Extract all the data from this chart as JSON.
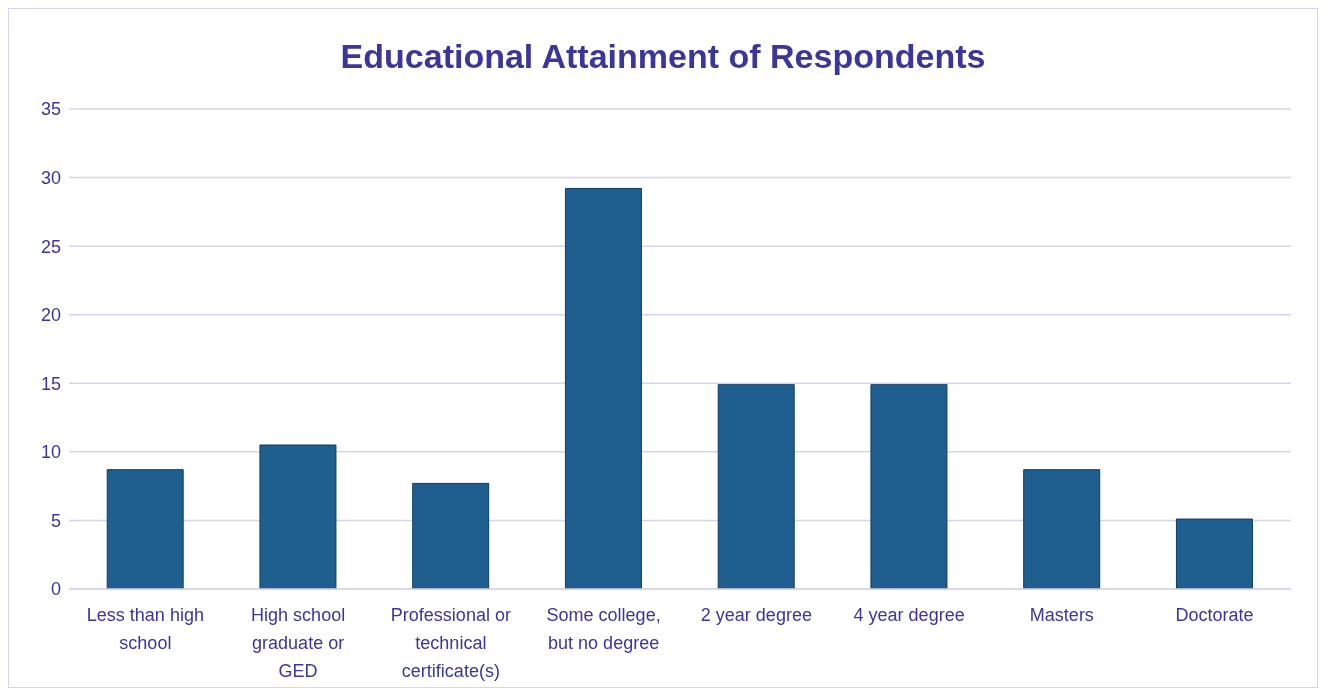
{
  "chart_data": {
    "type": "bar",
    "title": "Educational Attainment of Respondents",
    "categories": [
      "Less than high school",
      "High school graduate or GED",
      "Professional or technical certificate(s)",
      "Some college, but no degree",
      "2 year degree",
      "4 year degree",
      "Masters",
      "Doctorate"
    ],
    "values": [
      8.7,
      10.5,
      7.7,
      29.2,
      14.9,
      14.9,
      8.7,
      5.1
    ],
    "color": "#1f5f8f",
    "ylim": [
      0,
      35
    ],
    "yticks": [
      0,
      5,
      10,
      15,
      20,
      25,
      30,
      35
    ],
    "grid": "y"
  }
}
